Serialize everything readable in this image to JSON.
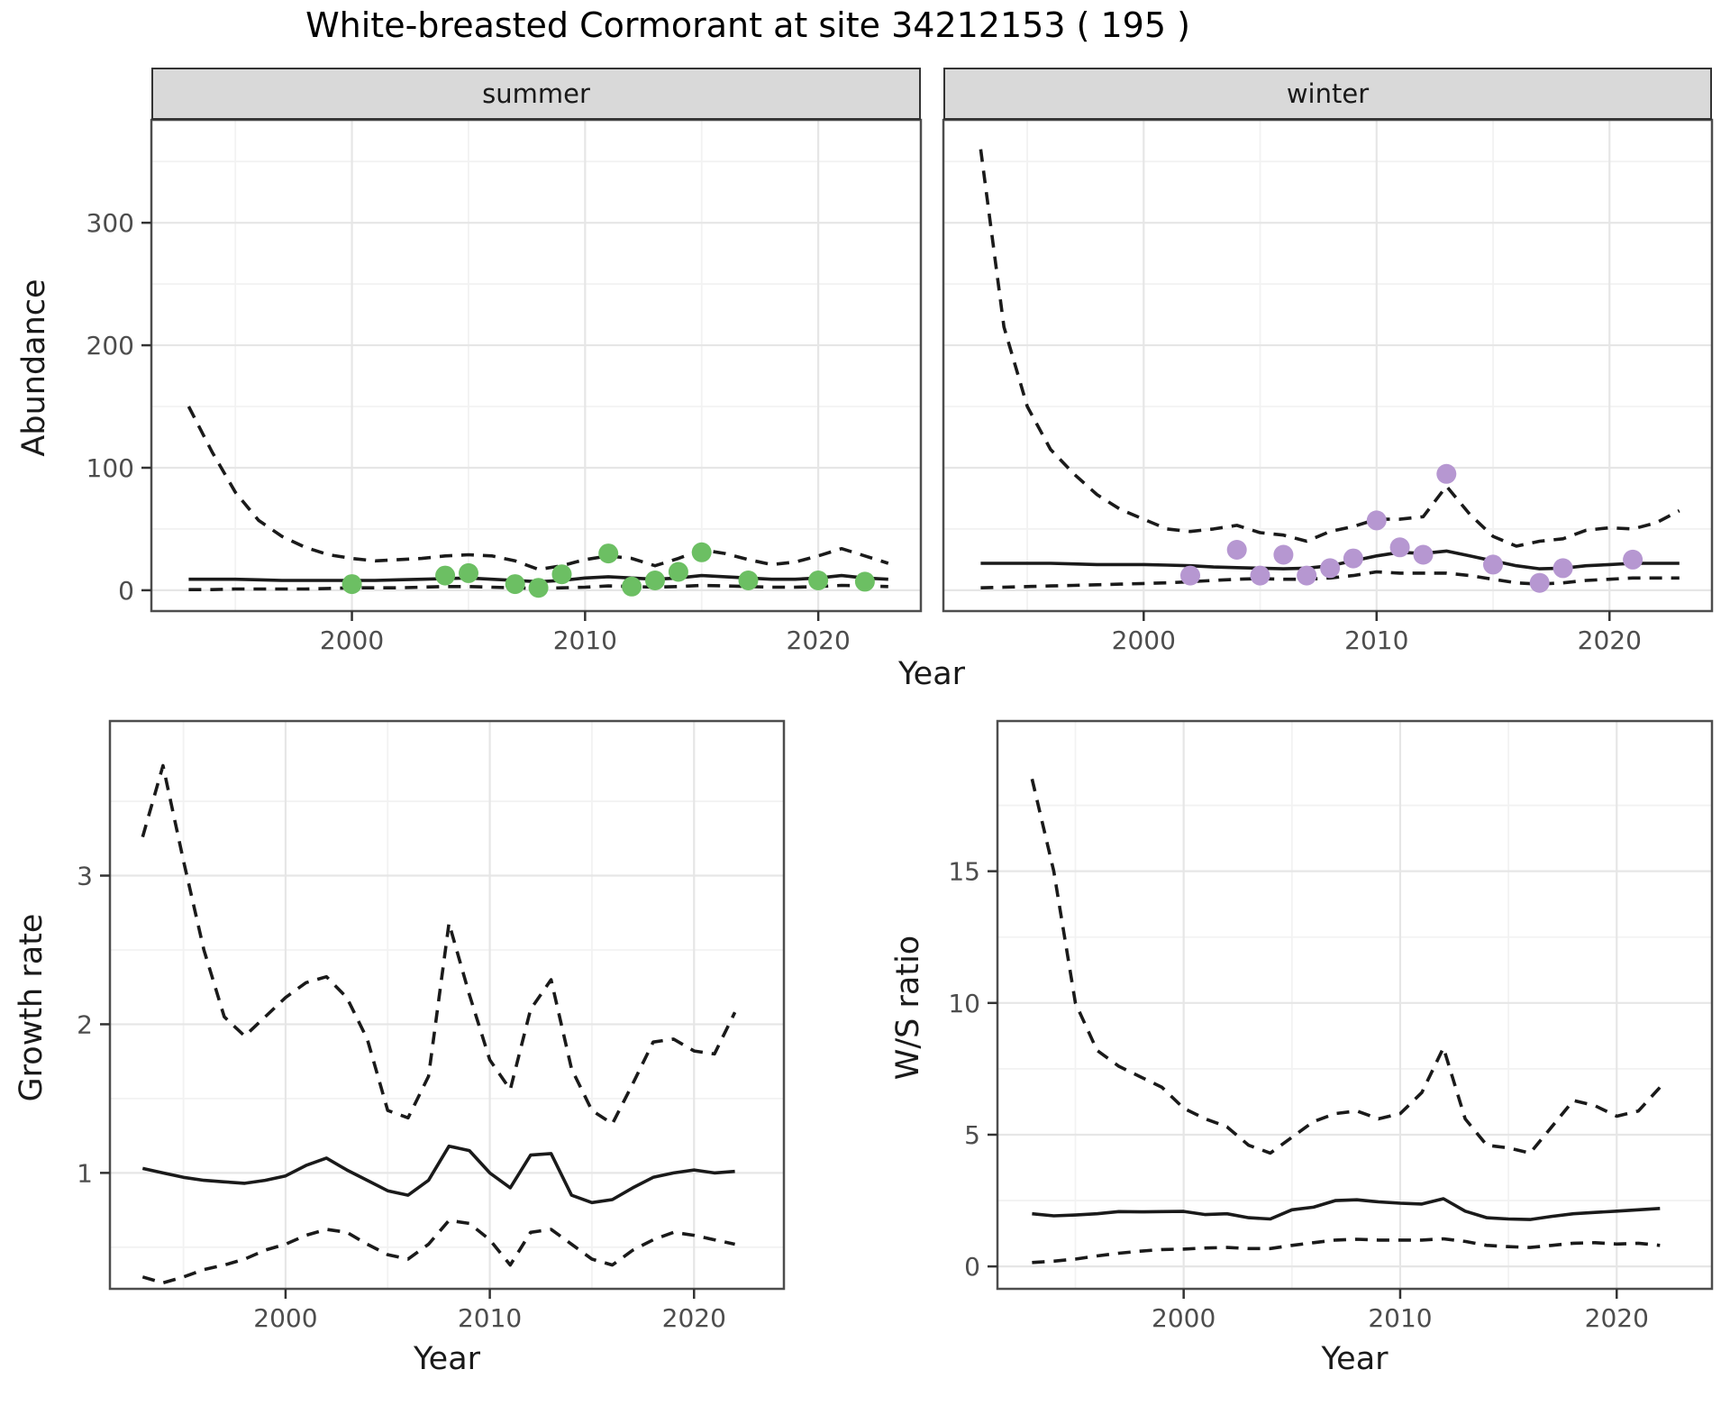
{
  "title": "White-breasted Cormorant at site 34212153 ( 195 )",
  "colors": {
    "summer_point": "#6CBF63",
    "winter_point": "#B697D1",
    "line": "#1A1A1A",
    "strip_background": "#D9D9D9",
    "grid_major": "#E6E6E6",
    "grid_minor": "#F2F2F2",
    "panel_border": "#4D4D4D",
    "tick_text": "#4D4D4D"
  },
  "chart_data": {
    "type": "line",
    "title": "White-breasted Cormorant at site 34212153 ( 195 )",
    "legend": "none",
    "panels": [
      {
        "id": "abundance-summer",
        "facet": "summer",
        "ylabel": "Abundance",
        "xlabel": "Year",
        "xlim": [
          1991.4,
          2024.4
        ],
        "ylim": [
          -17,
          384
        ],
        "x_ticks": [
          2000,
          2010,
          2020
        ],
        "x_minor_ticks": [
          1995,
          2005,
          2015
        ],
        "y_ticks": [
          0,
          100,
          200,
          300
        ],
        "y_minor_ticks": [
          50,
          150,
          250,
          350
        ],
        "x": [
          1993,
          1994,
          1995,
          1996,
          1997,
          1998,
          1999,
          2000,
          2001,
          2002,
          2003,
          2004,
          2005,
          2006,
          2007,
          2008,
          2009,
          2010,
          2011,
          2012,
          2013,
          2014,
          2015,
          2016,
          2017,
          2018,
          2019,
          2020,
          2021,
          2022,
          2023
        ],
        "series": [
          {
            "name": "upper_ci",
            "style": "dashed",
            "values": [
              150,
              113,
              80,
              57,
              44,
              35,
              29,
              26,
              24,
              25,
              26,
              28,
              29,
              28,
              24,
              17,
              20,
              25,
              28,
              26,
              20,
              26,
              33,
              30,
              25,
              21,
              23,
              28,
              34,
              28,
              22
            ]
          },
          {
            "name": "median",
            "style": "solid",
            "values": [
              9,
              9,
              9,
              8.5,
              8,
              8,
              8,
              8,
              8,
              8.5,
              9,
              9.5,
              10,
              9,
              8,
              7,
              8,
              10,
              11,
              10,
              9,
              10,
              12,
              11,
              10,
              9,
              9,
              10,
              12,
              10,
              9
            ]
          },
          {
            "name": "lower_ci",
            "style": "dashed",
            "values": [
              0.5,
              0.5,
              1,
              1,
              1,
              1,
              1.5,
              2,
              2,
              2,
              2.5,
              3,
              3,
              2.5,
              2,
              1.5,
              2,
              2.5,
              3.5,
              3,
              2.5,
              3,
              4,
              3.5,
              3,
              2.5,
              2.5,
              3,
              4,
              3.5,
              3
            ]
          }
        ],
        "points": [
          [
            2000,
            5
          ],
          [
            2004,
            12
          ],
          [
            2005,
            14
          ],
          [
            2007,
            5
          ],
          [
            2008,
            2
          ],
          [
            2009,
            13
          ],
          [
            2011,
            30
          ],
          [
            2012,
            3
          ],
          [
            2013,
            8
          ],
          [
            2014,
            15
          ],
          [
            2015,
            31
          ],
          [
            2017,
            8
          ],
          [
            2020,
            8
          ],
          [
            2022,
            7
          ]
        ],
        "point_color": "#6CBF63"
      },
      {
        "id": "abundance-winter",
        "facet": "winter",
        "ylabel": "Abundance",
        "xlabel": "Year",
        "xlim": [
          1991.4,
          2024.4
        ],
        "ylim": [
          -17,
          384
        ],
        "x_ticks": [
          2000,
          2010,
          2020
        ],
        "x_minor_ticks": [
          1995,
          2005,
          2015
        ],
        "y_ticks": [
          0,
          100,
          200,
          300
        ],
        "y_minor_ticks": [
          50,
          150,
          250,
          350
        ],
        "x": [
          1993,
          1994,
          1995,
          1996,
          1997,
          1998,
          1999,
          2000,
          2001,
          2002,
          2003,
          2004,
          2005,
          2006,
          2007,
          2008,
          2009,
          2010,
          2011,
          2012,
          2013,
          2014,
          2015,
          2016,
          2017,
          2018,
          2019,
          2020,
          2021,
          2022,
          2023
        ],
        "series": [
          {
            "name": "upper_ci",
            "style": "dashed",
            "values": [
              360,
              215,
              150,
              115,
              95,
              78,
              66,
              58,
              50,
              48,
              50,
              53,
              47,
              45,
              40,
              48,
              52,
              58,
              58,
              60,
              85,
              62,
              44,
              36,
              40,
              42,
              49,
              51,
              50,
              55,
              65
            ]
          },
          {
            "name": "median",
            "style": "solid",
            "values": [
              22,
              22,
              22,
              22,
              21.5,
              21,
              21,
              21,
              20.5,
              20,
              19,
              18.5,
              18,
              17.5,
              18,
              20,
              24,
              28,
              31,
              30,
              32,
              28,
              24,
              20,
              17.5,
              18,
              20,
              21,
              22,
              22,
              22
            ]
          },
          {
            "name": "lower_ci",
            "style": "dashed",
            "values": [
              2,
              2.5,
              3,
              3.5,
              4,
              4.5,
              5,
              5.5,
              6,
              7,
              8,
              9,
              9.5,
              9,
              9,
              10,
              12,
              15,
              14,
              14,
              14,
              12,
              9,
              6,
              5,
              6,
              8,
              9,
              10,
              10,
              10
            ]
          }
        ],
        "points": [
          [
            2002,
            12
          ],
          [
            2004,
            33
          ],
          [
            2005,
            12
          ],
          [
            2006,
            29
          ],
          [
            2007,
            12
          ],
          [
            2008,
            18
          ],
          [
            2009,
            26
          ],
          [
            2010,
            57
          ],
          [
            2011,
            35
          ],
          [
            2012,
            29
          ],
          [
            2013,
            95
          ],
          [
            2015,
            21
          ],
          [
            2017,
            6
          ],
          [
            2018,
            18
          ],
          [
            2021,
            25
          ]
        ],
        "point_color": "#B697D1"
      },
      {
        "id": "growth-rate",
        "facet": null,
        "ylabel": "Growth rate",
        "xlabel": "Year",
        "xlim": [
          1991.4,
          2024.4
        ],
        "ylim": [
          0.22,
          4.04
        ],
        "x_ticks": [
          2000,
          2010,
          2020
        ],
        "x_minor_ticks": [
          1995,
          2005,
          2015
        ],
        "y_ticks": [
          1,
          2,
          3
        ],
        "y_minor_ticks": [
          0.5,
          1.5,
          2.5,
          3.5
        ],
        "x": [
          1993,
          1994,
          1995,
          1996,
          1997,
          1998,
          1999,
          2000,
          2001,
          2002,
          2003,
          2004,
          2005,
          2006,
          2007,
          2008,
          2009,
          2010,
          2011,
          2012,
          2013,
          2014,
          2015,
          2016,
          2017,
          2018,
          2019,
          2020,
          2021,
          2022
        ],
        "series": [
          {
            "name": "upper_ci",
            "style": "dashed",
            "values": [
              3.26,
              3.74,
              3.1,
              2.5,
              2.05,
              1.92,
              2.05,
              2.18,
              2.28,
              2.32,
              2.18,
              1.9,
              1.42,
              1.37,
              1.65,
              2.68,
              2.2,
              1.76,
              1.56,
              2.1,
              2.3,
              1.7,
              1.42,
              1.33,
              1.6,
              1.88,
              1.9,
              1.82,
              1.8,
              2.08
            ]
          },
          {
            "name": "median",
            "style": "solid",
            "values": [
              1.03,
              1.0,
              0.97,
              0.95,
              0.94,
              0.93,
              0.95,
              0.98,
              1.05,
              1.1,
              1.02,
              0.95,
              0.88,
              0.85,
              0.95,
              1.18,
              1.15,
              1.0,
              0.9,
              1.12,
              1.13,
              0.85,
              0.8,
              0.82,
              0.9,
              0.97,
              1.0,
              1.02,
              1.0,
              1.01
            ]
          },
          {
            "name": "lower_ci",
            "style": "dashed",
            "values": [
              0.3,
              0.26,
              0.3,
              0.35,
              0.38,
              0.42,
              0.48,
              0.52,
              0.58,
              0.62,
              0.6,
              0.52,
              0.45,
              0.42,
              0.52,
              0.68,
              0.66,
              0.55,
              0.38,
              0.6,
              0.62,
              0.52,
              0.42,
              0.38,
              0.48,
              0.55,
              0.6,
              0.58,
              0.55,
              0.52
            ]
          }
        ],
        "points": [],
        "point_color": null
      },
      {
        "id": "ws-ratio",
        "facet": null,
        "ylabel": "W/S ratio",
        "xlabel": "Year",
        "xlim": [
          1991.4,
          2024.4
        ],
        "ylim": [
          -0.85,
          20.7
        ],
        "x_ticks": [
          2000,
          2010,
          2020
        ],
        "x_minor_ticks": [
          1995,
          2005,
          2015
        ],
        "y_ticks": [
          0,
          5,
          10,
          15
        ],
        "y_minor_ticks": [
          2.5,
          7.5,
          12.5,
          17.5
        ],
        "x": [
          1993,
          1994,
          1995,
          1996,
          1997,
          1998,
          1999,
          2000,
          2001,
          2002,
          2003,
          2004,
          2005,
          2006,
          2007,
          2008,
          2009,
          2010,
          2011,
          2012,
          2013,
          2014,
          2015,
          2016,
          2017,
          2018,
          2019,
          2020,
          2021,
          2022
        ],
        "series": [
          {
            "name": "upper_ci",
            "style": "dashed",
            "values": [
              18.5,
              15,
              10,
              8.2,
              7.6,
              7.2,
              6.8,
              6.0,
              5.6,
              5.3,
              4.6,
              4.3,
              4.9,
              5.5,
              5.8,
              5.9,
              5.6,
              5.8,
              6.6,
              8.3,
              5.6,
              4.6,
              4.5,
              4.3,
              5.3,
              6.3,
              6.1,
              5.7,
              5.9,
              6.8
            ]
          },
          {
            "name": "median",
            "style": "solid",
            "values": [
              2.0,
              1.92,
              1.95,
              2.0,
              2.08,
              2.07,
              2.08,
              2.09,
              1.97,
              2.0,
              1.85,
              1.8,
              2.15,
              2.25,
              2.5,
              2.53,
              2.45,
              2.4,
              2.37,
              2.57,
              2.1,
              1.85,
              1.8,
              1.78,
              1.9,
              2.0,
              2.05,
              2.1,
              2.15,
              2.2
            ]
          },
          {
            "name": "lower_ci",
            "style": "dashed",
            "values": [
              0.15,
              0.2,
              0.28,
              0.4,
              0.5,
              0.58,
              0.64,
              0.66,
              0.7,
              0.72,
              0.68,
              0.68,
              0.8,
              0.9,
              1.0,
              1.03,
              1.0,
              1.0,
              1.0,
              1.05,
              0.95,
              0.8,
              0.75,
              0.72,
              0.8,
              0.88,
              0.9,
              0.85,
              0.88,
              0.8
            ]
          }
        ],
        "points": [],
        "point_color": null
      }
    ]
  }
}
